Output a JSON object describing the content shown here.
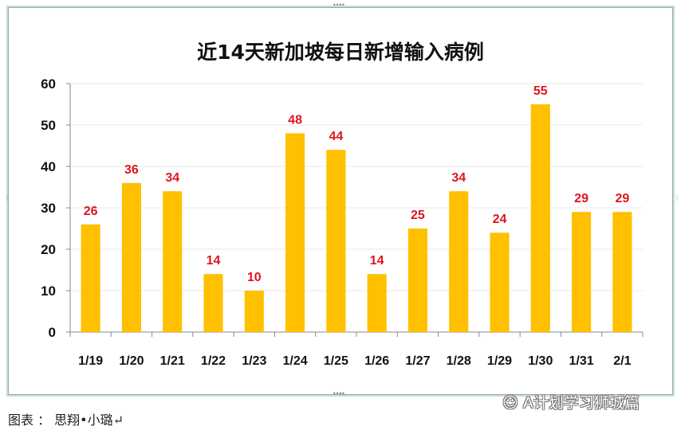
{
  "chart_data": {
    "type": "bar",
    "title": "近14天新加坡每日新增输入病例",
    "categories": [
      "1/19",
      "1/20",
      "1/21",
      "1/22",
      "1/23",
      "1/24",
      "1/25",
      "1/26",
      "1/27",
      "1/28",
      "1/29",
      "1/30",
      "1/31",
      "2/1"
    ],
    "values": [
      26,
      36,
      34,
      14,
      10,
      48,
      44,
      14,
      25,
      34,
      24,
      55,
      29,
      29
    ],
    "xlabel": "",
    "ylabel": "",
    "ylim": [
      0,
      60
    ],
    "yticks": [
      0,
      10,
      20,
      30,
      40,
      50,
      60
    ],
    "grid": true,
    "legend": "none",
    "bar_color": "#FFC000",
    "label_color": "#E0141E"
  },
  "footer": {
    "caption": "图表 ： 思翔•小璐↵"
  },
  "watermark": {
    "text": "A计划学习狮城篇"
  }
}
